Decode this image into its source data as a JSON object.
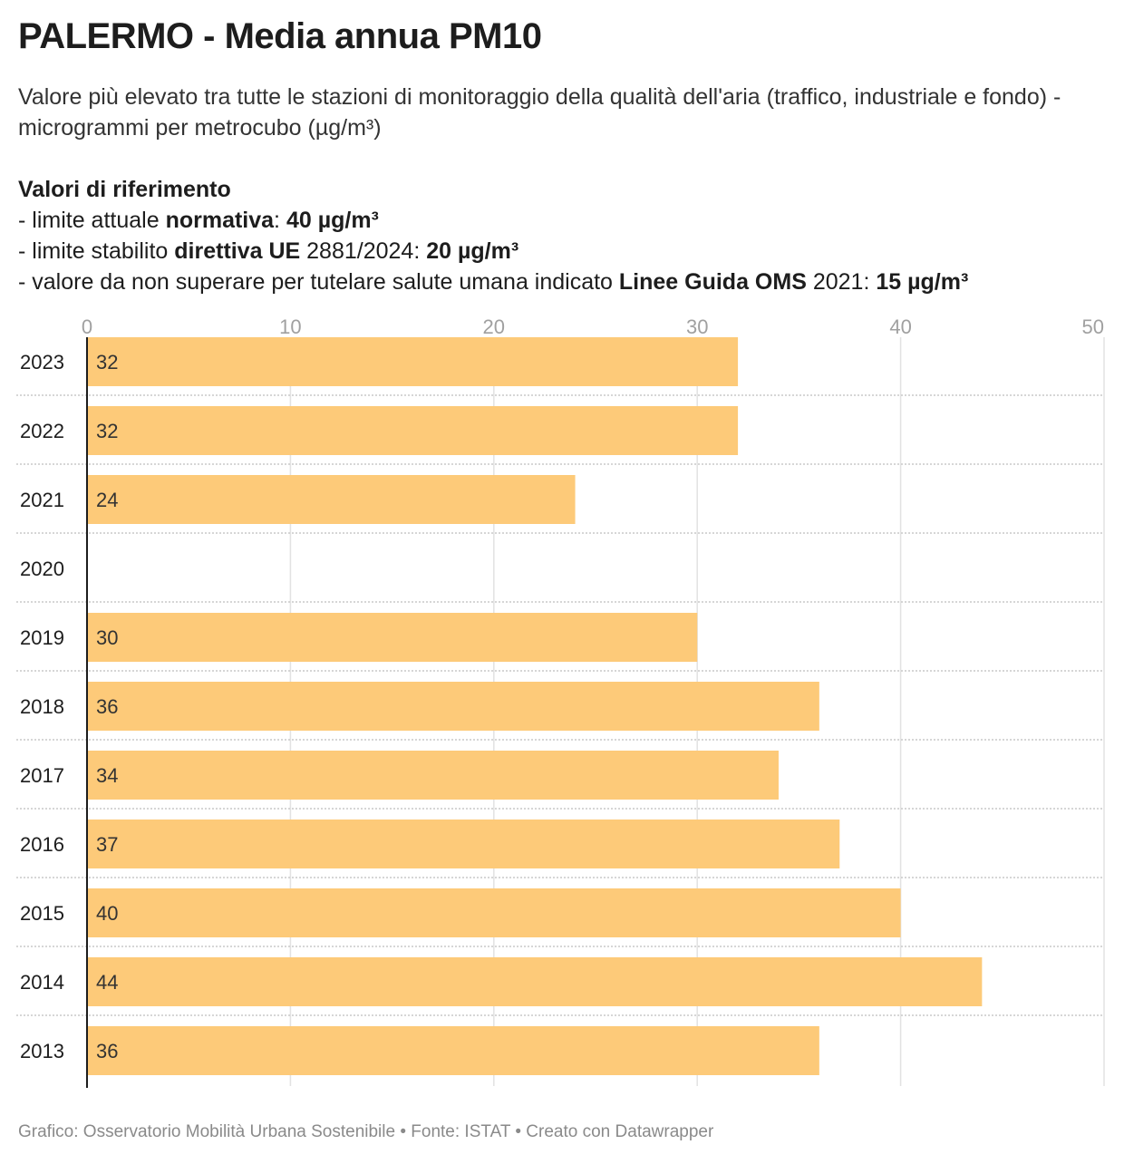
{
  "title": "PALERMO - Media annua PM10",
  "subtitle": "Valore più elevato tra tutte le stazioni di monitoraggio della qualità dell'aria (traffico, industriale e fondo) - microgrammi per metrocubo (µg/m³)",
  "reference": {
    "heading": "Valori di riferimento",
    "line1": {
      "prefix": "- limite attuale ",
      "bold1": "normativa",
      "mid": ": ",
      "bold2": "40 µg/m³"
    },
    "line2": {
      "prefix": "- limite stabilito ",
      "bold1": "direttiva UE",
      "mid": " 2881/2024: ",
      "bold2": "20 µg/m³"
    },
    "line3": {
      "prefix": "- valore da non superare per tutelare salute umana indicato ",
      "bold1": "Linee Guida OMS",
      "mid": " 2021: ",
      "bold2": "15 µg/m³"
    }
  },
  "footer": "Grafico: Osservatorio Mobilità Urbana Sostenibile • Fonte: ISTAT • Creato con Datawrapper",
  "colors": {
    "bar": "#fdca79",
    "grid": "#e2e2e2",
    "axis": "#1d1d1d",
    "tick_label": "#a0a0a0"
  },
  "chart_data": {
    "type": "bar",
    "orientation": "horizontal",
    "categories": [
      "2023",
      "2022",
      "2021",
      "2020",
      "2019",
      "2018",
      "2017",
      "2016",
      "2015",
      "2014",
      "2013"
    ],
    "values": [
      32,
      32,
      24,
      null,
      30,
      36,
      34,
      37,
      40,
      44,
      36
    ],
    "data_labels": [
      "32",
      "32",
      "24",
      "",
      "30",
      "36",
      "34",
      "37",
      "40",
      "44",
      "36"
    ],
    "xlim": [
      0,
      50
    ],
    "xticks": [
      0,
      10,
      20,
      30,
      40,
      50
    ],
    "xtick_labels": [
      "0",
      "10",
      "20",
      "30",
      "40",
      "50"
    ],
    "grid": true,
    "xlabel": "",
    "ylabel": ""
  }
}
